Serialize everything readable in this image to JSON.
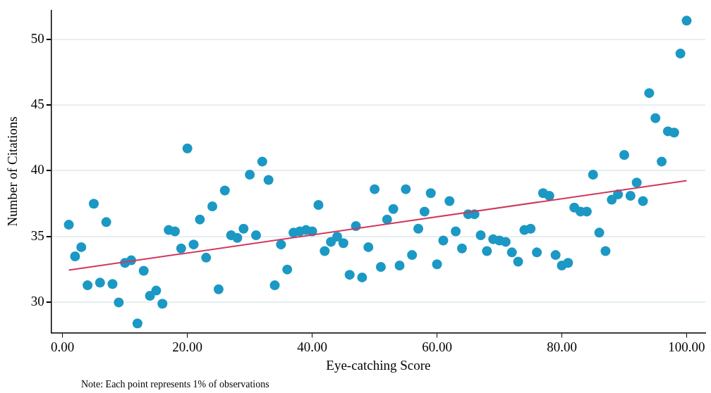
{
  "chart_data": {
    "type": "scatter",
    "xlabel": "Eye-catching Score",
    "ylabel": "Number of Citations",
    "annotations": [
      "Note: Each point represents 1% of observations"
    ],
    "series": [
      {
        "color": "#1b98c4",
        "x": [
          1,
          2,
          3,
          4,
          5,
          6,
          7,
          8,
          9,
          10,
          11,
          12,
          13,
          14,
          15,
          16,
          17,
          18,
          19,
          20,
          21,
          22,
          23,
          24,
          25,
          26,
          27,
          28,
          29,
          30,
          31,
          32,
          33,
          34,
          35,
          36,
          37,
          38,
          39,
          40,
          41,
          42,
          43,
          44,
          45,
          46,
          47,
          48,
          49,
          50,
          51,
          52,
          53,
          54,
          55,
          56,
          57,
          58,
          59,
          60,
          61,
          62,
          63,
          64,
          65,
          66,
          67,
          68,
          69,
          70,
          71,
          72,
          73,
          74,
          75,
          76,
          77,
          78,
          79,
          80,
          81,
          82,
          83,
          84,
          85,
          86,
          87,
          88,
          89,
          90,
          91,
          92,
          93,
          94,
          95,
          96,
          97,
          98,
          99,
          100
        ],
        "values": [
          35.9,
          33.5,
          34.2,
          31.3,
          37.5,
          31.5,
          36.1,
          31.4,
          30.0,
          33.0,
          33.2,
          28.4,
          32.4,
          30.5,
          30.9,
          29.9,
          35.5,
          35.4,
          34.1,
          41.7,
          34.4,
          36.3,
          33.4,
          37.3,
          31.0,
          38.5,
          35.1,
          34.9,
          35.6,
          39.7,
          35.1,
          40.7,
          39.3,
          31.3,
          34.4,
          32.5,
          35.3,
          35.4,
          35.5,
          35.4,
          37.4,
          33.9,
          34.6,
          35.0,
          34.5,
          32.1,
          35.8,
          31.9,
          34.2,
          38.6,
          32.7,
          36.3,
          37.1,
          32.8,
          38.6,
          33.6,
          35.6,
          36.9,
          38.3,
          32.9,
          34.7,
          37.7,
          35.4,
          34.1,
          36.7,
          36.7,
          35.1,
          33.9,
          34.8,
          34.7,
          34.6,
          33.8,
          33.1,
          35.5,
          35.6,
          33.8,
          38.3,
          38.1,
          33.6,
          32.8,
          33.0,
          37.2,
          36.9,
          36.9,
          39.7,
          35.3,
          33.9,
          37.8,
          38.2,
          41.2,
          38.1,
          39.1,
          37.7,
          45.9,
          44.0,
          40.7,
          43.0,
          42.9,
          48.9,
          51.4
        ]
      },
      {
        "type": "line",
        "color": "#d2385c",
        "x": [
          1,
          100
        ],
        "values": [
          32.45,
          39.25
        ],
        "marker": "none"
      }
    ],
    "marker": "circle",
    "xlim": [
      -1.8,
      103
    ],
    "ylim": [
      27.7,
      52.2
    ],
    "xticks": [
      {
        "value": 0,
        "label": "0.00"
      },
      {
        "value": 20,
        "label": "20.00"
      },
      {
        "value": 40,
        "label": "40.00"
      },
      {
        "value": 60,
        "label": "60.00"
      },
      {
        "value": 80,
        "label": "80.00"
      },
      {
        "value": 100,
        "label": "100.00"
      }
    ],
    "yticks": [
      30,
      35,
      40,
      45,
      50
    ],
    "grid": "y",
    "legend": false
  }
}
